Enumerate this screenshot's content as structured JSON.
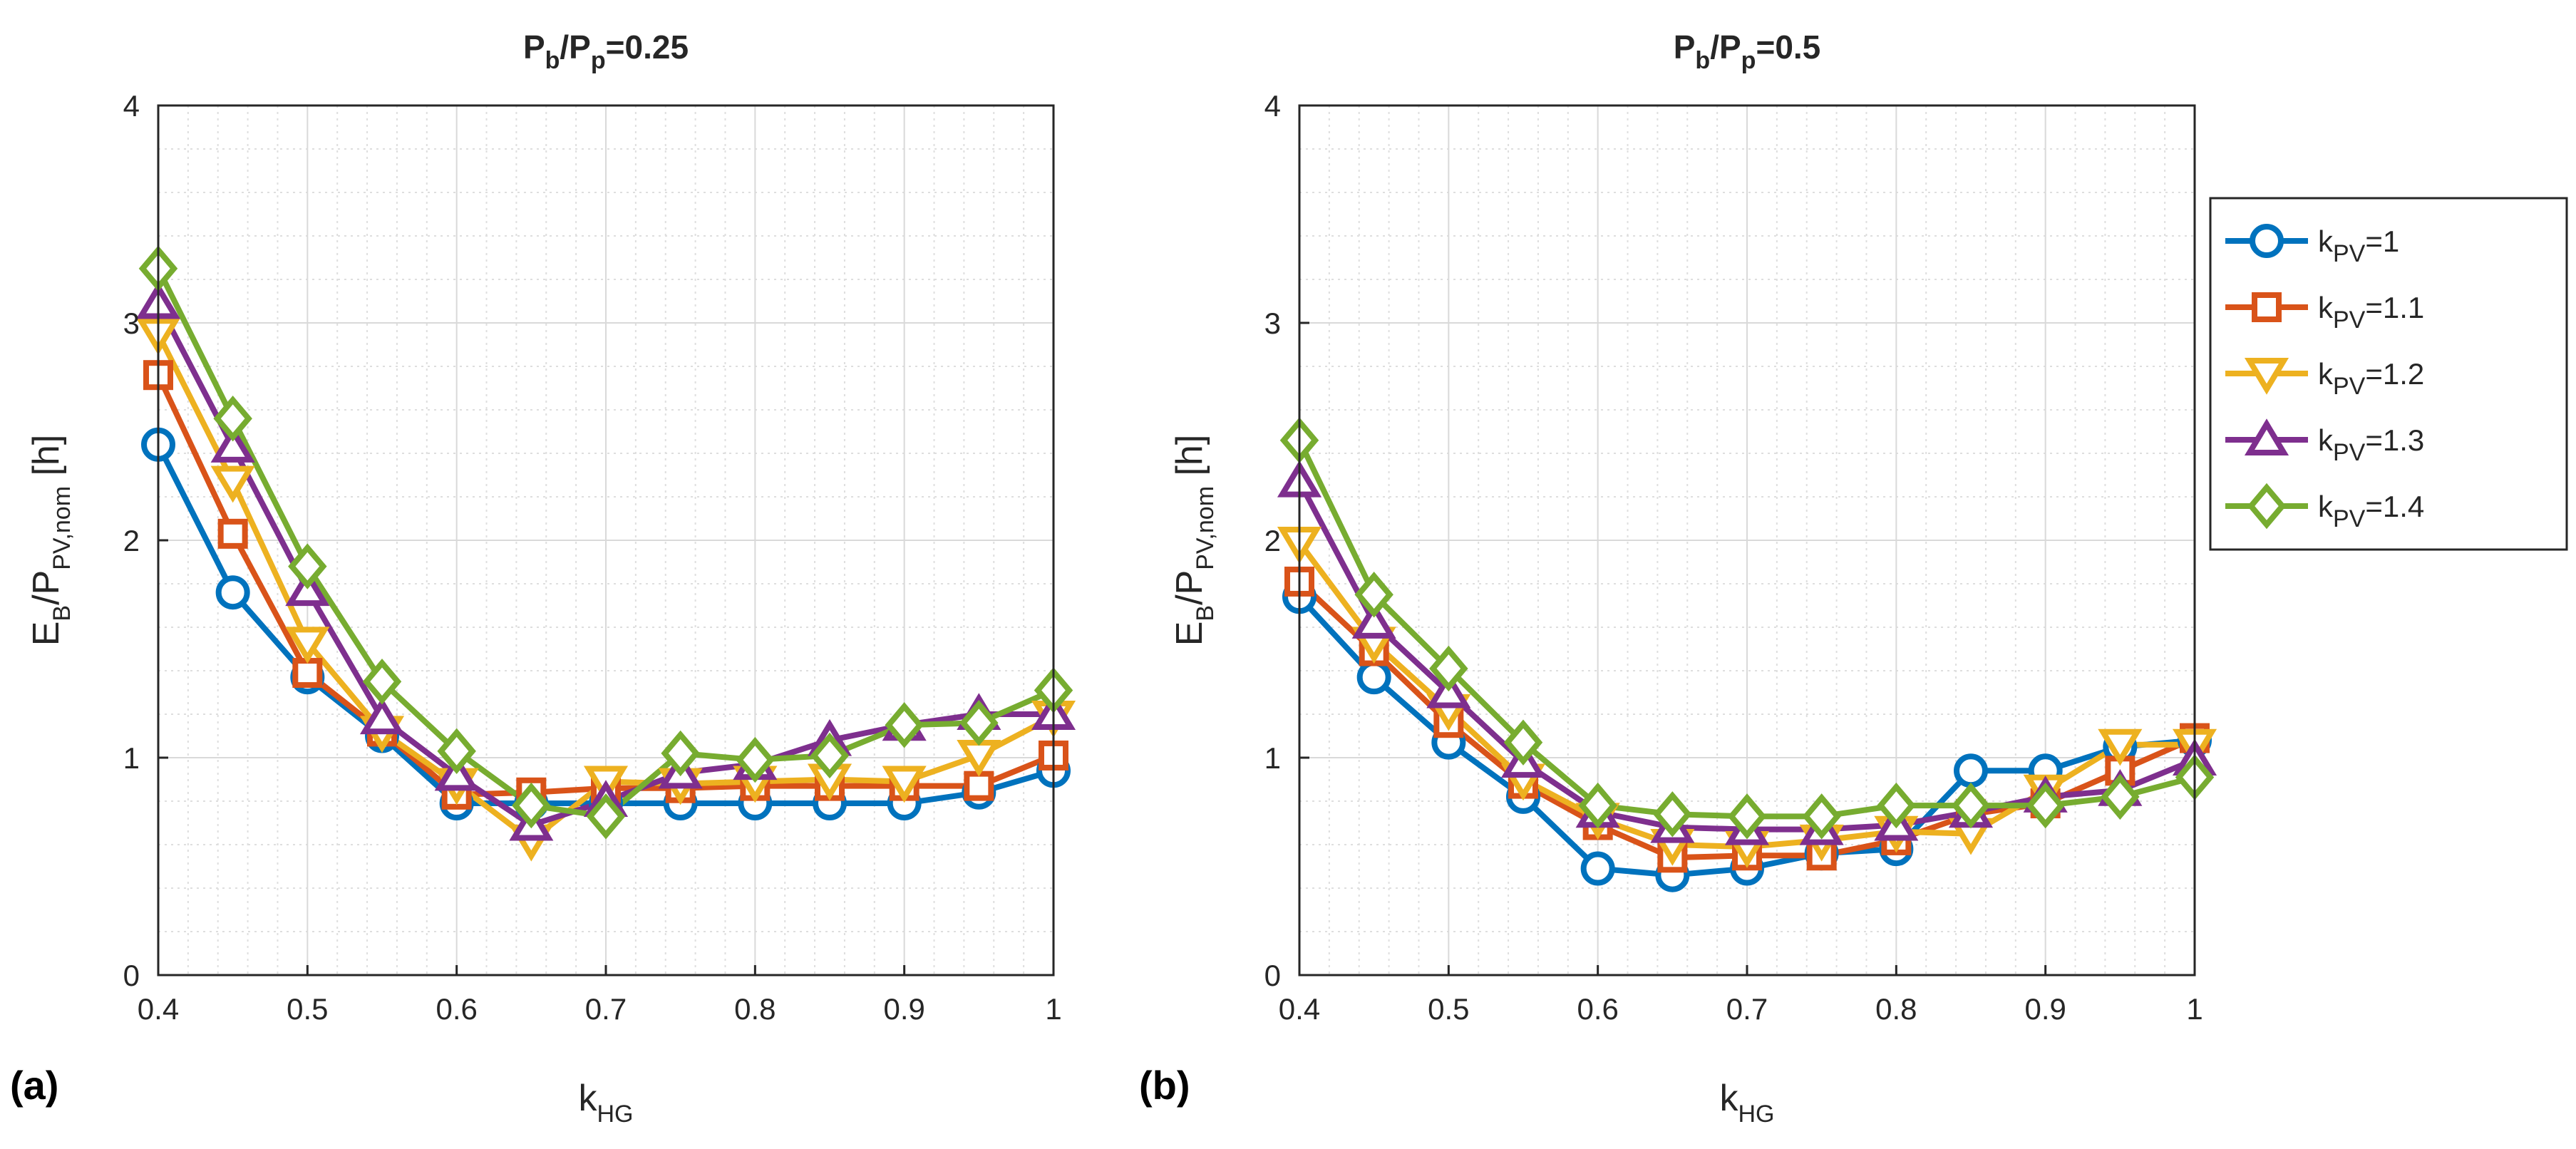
{
  "colors": {
    "series": [
      "#0072BD",
      "#D95319",
      "#EDB120",
      "#7E2F8E",
      "#77AC30"
    ],
    "grid": "#d9d9d9",
    "axis": "#262626"
  },
  "panel_labels": [
    "(a)",
    "(b)"
  ],
  "legend": [
    {
      "base": "k",
      "sub": "PV",
      "rest": "=1",
      "marker": "circle"
    },
    {
      "base": "k",
      "sub": "PV",
      "rest": "=1.1",
      "marker": "square"
    },
    {
      "base": "k",
      "sub": "PV",
      "rest": "=1.2",
      "marker": "triangle-down"
    },
    {
      "base": "k",
      "sub": "PV",
      "rest": "=1.3",
      "marker": "triangle-up"
    },
    {
      "base": "k",
      "sub": "PV",
      "rest": "=1.4",
      "marker": "diamond"
    }
  ],
  "chart_data": [
    {
      "type": "line",
      "title_parts": {
        "a": "P",
        "a_sub": "b",
        "b": "/P",
        "b_sub": "p",
        "c": "=0.25"
      },
      "xlabel": {
        "base": "k",
        "sub": "HG"
      },
      "ylabel": {
        "base": "E",
        "sub1": "B",
        "mid": "/P",
        "sub2": "PV,nom",
        "unit": " [h]"
      },
      "xlim": [
        0.4,
        1
      ],
      "ylim": [
        0,
        4
      ],
      "xticks": [
        "0.4",
        "0.5",
        "0.6",
        "0.7",
        "0.8",
        "0.9",
        "1"
      ],
      "yticks": [
        "0",
        "1",
        "2",
        "3",
        "4"
      ],
      "x": [
        0.4,
        0.45,
        0.5,
        0.55,
        0.6,
        0.65,
        0.7,
        0.75,
        0.8,
        0.85,
        0.9,
        0.95,
        1.0
      ],
      "series": [
        {
          "name": "k_PV=1",
          "values": [
            2.44,
            1.76,
            1.37,
            1.1,
            0.79,
            0.79,
            0.79,
            0.79,
            0.79,
            0.79,
            0.79,
            0.84,
            0.94
          ]
        },
        {
          "name": "k_PV=1.1",
          "values": [
            2.76,
            2.03,
            1.39,
            1.12,
            0.83,
            0.84,
            0.86,
            0.86,
            0.87,
            0.87,
            0.87,
            0.87,
            1.01
          ]
        },
        {
          "name": "k_PV=1.2",
          "values": [
            2.95,
            2.27,
            1.53,
            1.12,
            0.88,
            0.62,
            0.89,
            0.88,
            0.89,
            0.9,
            0.89,
            1.01,
            1.19
          ]
        },
        {
          "name": "k_PV=1.3",
          "values": [
            3.09,
            2.43,
            1.77,
            1.18,
            0.92,
            0.69,
            0.8,
            0.93,
            0.97,
            1.08,
            1.15,
            1.2,
            1.2
          ]
        },
        {
          "name": "k_PV=1.4",
          "values": [
            3.25,
            2.56,
            1.88,
            1.35,
            1.03,
            0.78,
            0.73,
            1.02,
            0.99,
            1.01,
            1.15,
            1.16,
            1.31
          ]
        }
      ]
    },
    {
      "type": "line",
      "title_parts": {
        "a": "P",
        "a_sub": "b",
        "b": "/P",
        "b_sub": "p",
        "c": "=0.5"
      },
      "xlabel": {
        "base": "k",
        "sub": "HG"
      },
      "ylabel": {
        "base": "E",
        "sub1": "B",
        "mid": "/P",
        "sub2": "PV,nom",
        "unit": " [h]"
      },
      "xlim": [
        0.4,
        1
      ],
      "ylim": [
        0,
        4
      ],
      "xticks": [
        "0.4",
        "0.5",
        "0.6",
        "0.7",
        "0.8",
        "0.9",
        "1"
      ],
      "yticks": [
        "0",
        "1",
        "2",
        "3",
        "4"
      ],
      "x": [
        0.4,
        0.45,
        0.5,
        0.55,
        0.6,
        0.65,
        0.7,
        0.75,
        0.8,
        0.85,
        0.9,
        0.95,
        1.0
      ],
      "series": [
        {
          "name": "k_PV=1",
          "values": [
            1.74,
            1.37,
            1.07,
            0.82,
            0.49,
            0.46,
            0.49,
            0.56,
            0.58,
            0.94,
            0.94,
            1.05,
            1.08
          ]
        },
        {
          "name": "k_PV=1.1",
          "values": [
            1.81,
            1.49,
            1.16,
            0.88,
            0.69,
            0.54,
            0.55,
            0.55,
            0.62,
            0.74,
            0.79,
            0.94,
            1.09
          ]
        },
        {
          "name": "k_PV=1.2",
          "values": [
            1.99,
            1.53,
            1.22,
            0.9,
            0.72,
            0.6,
            0.59,
            0.62,
            0.66,
            0.65,
            0.85,
            1.06,
            1.06
          ]
        },
        {
          "name": "k_PV=1.3",
          "values": [
            2.27,
            1.62,
            1.3,
            0.98,
            0.75,
            0.68,
            0.67,
            0.67,
            0.69,
            0.75,
            0.82,
            0.85,
            0.99
          ]
        },
        {
          "name": "k_PV=1.4",
          "values": [
            2.46,
            1.75,
            1.41,
            1.07,
            0.78,
            0.74,
            0.73,
            0.73,
            0.78,
            0.78,
            0.78,
            0.82,
            0.91
          ]
        }
      ]
    }
  ]
}
